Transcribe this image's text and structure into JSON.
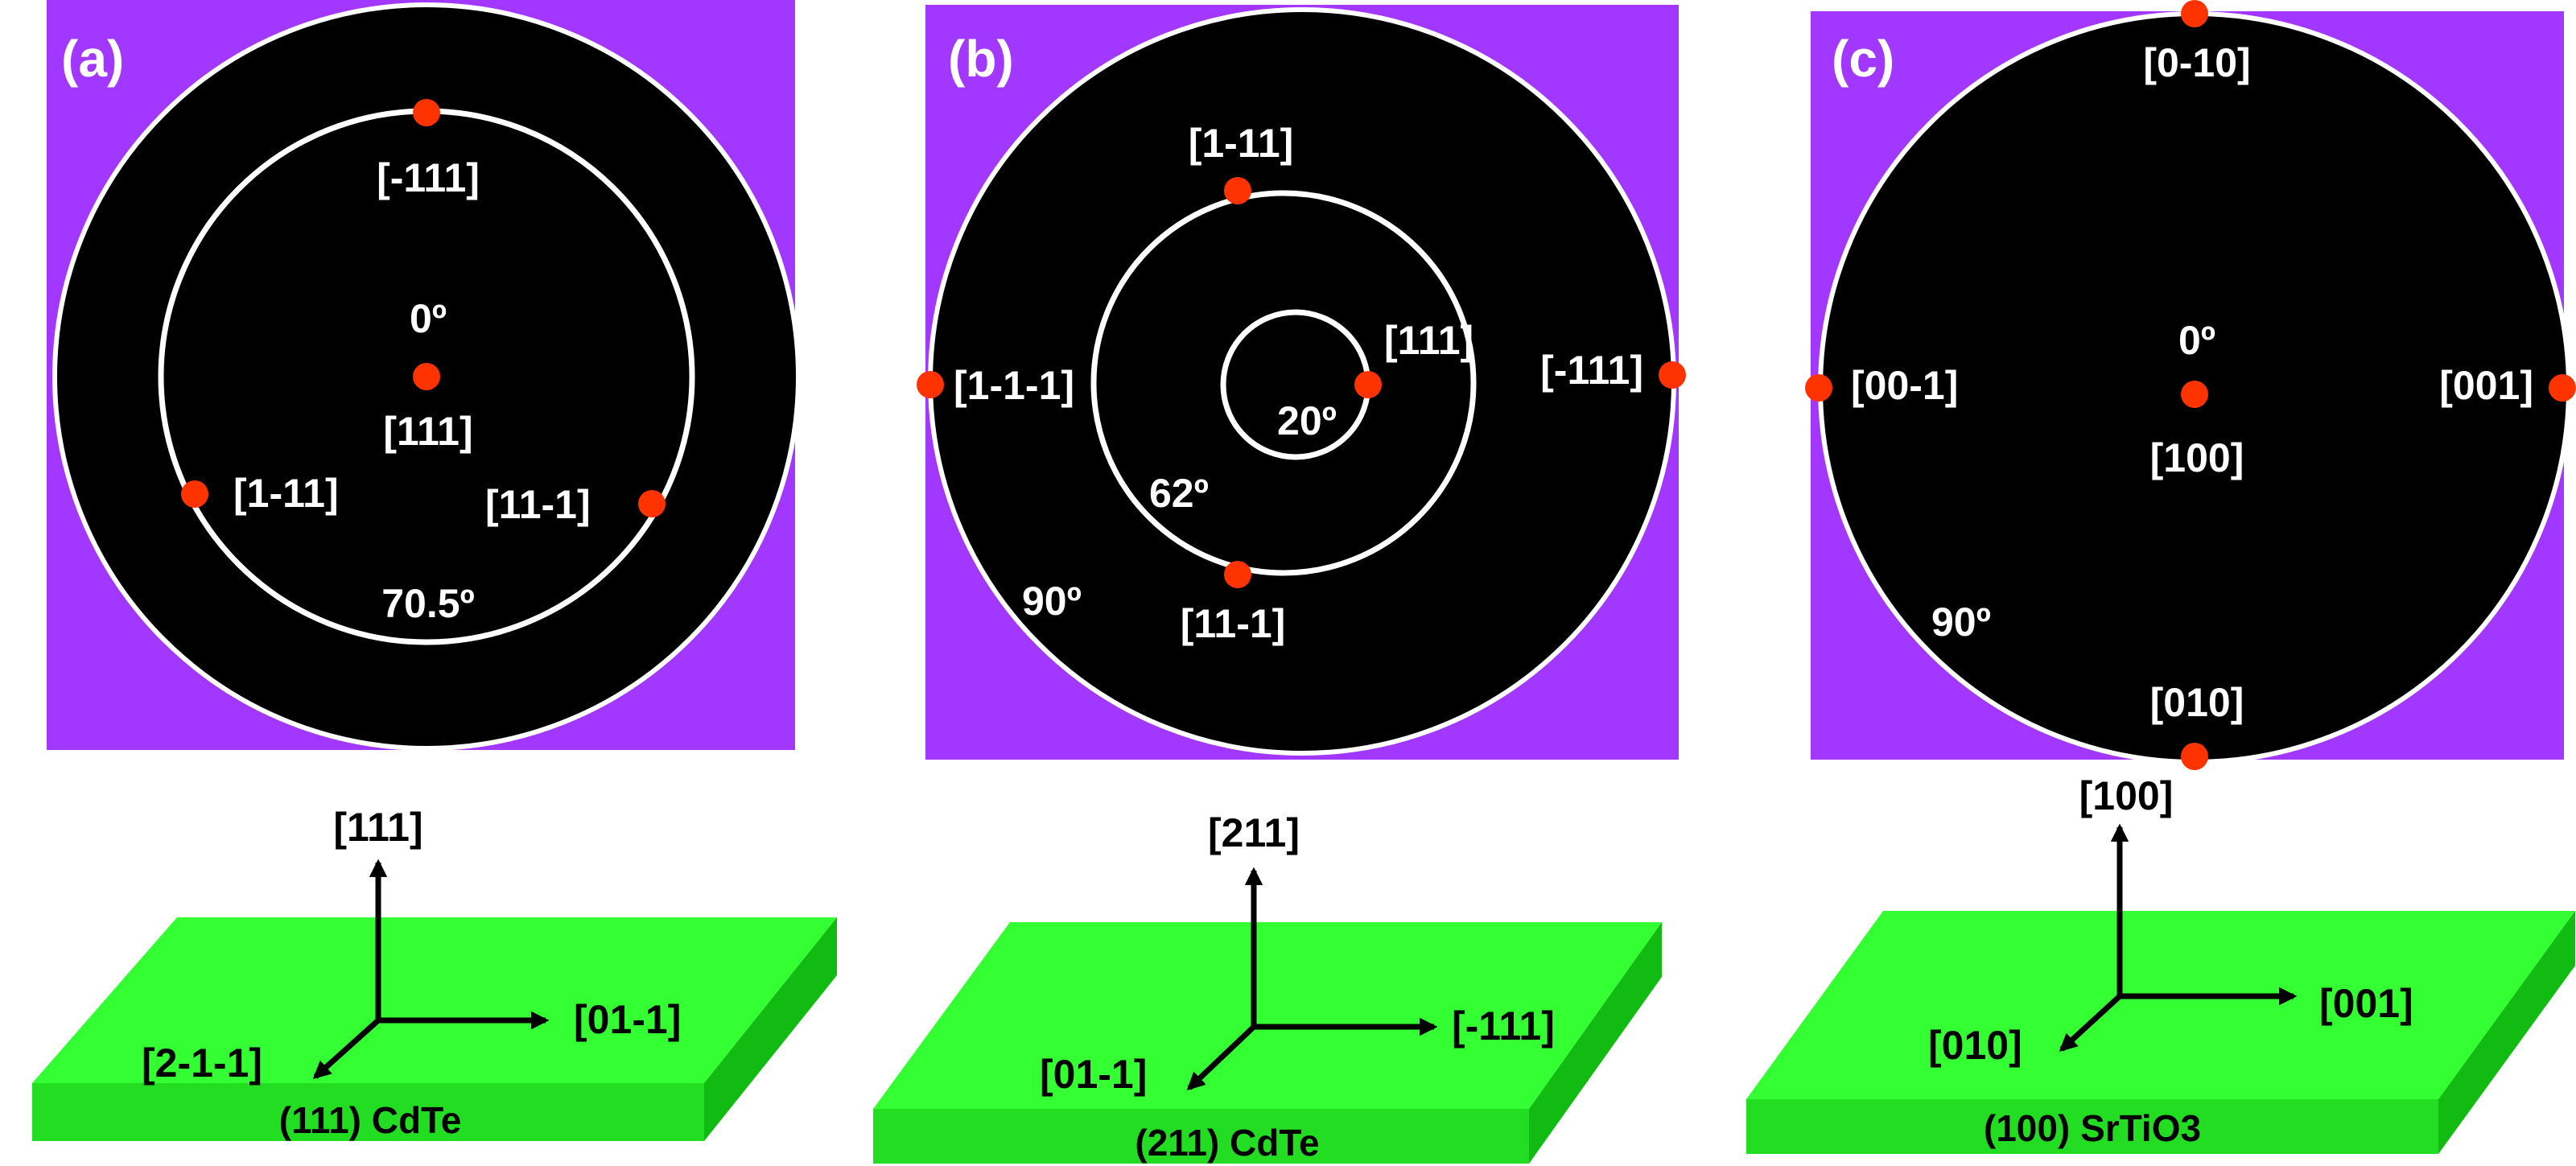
{
  "colors": {
    "background": "#a238ff",
    "disk": "#000000",
    "circle": "#ffffff",
    "pole": "#ff3300",
    "slab_top": "#33ff33",
    "slab_front": "#22dd22",
    "slab_side": "#11bb11",
    "arrow": "#000000"
  },
  "panels": [
    {
      "id": "a",
      "panel_label": "(a)",
      "angle_labels": [
        "0º",
        "70.5º"
      ],
      "poles": [
        "[-111]",
        "[111]",
        "[1-11]",
        "[11-1]"
      ],
      "axes": {
        "normal": "[111]",
        "right": "[01-1]",
        "front": "[2-1-1]"
      },
      "substrate": "(111) CdTe"
    },
    {
      "id": "b",
      "panel_label": "(b)",
      "angle_labels": [
        "20º",
        "62º",
        "90º"
      ],
      "poles": [
        "[1-11]",
        "[111]",
        "[1-1-1]",
        "[-111]",
        "[11-1]"
      ],
      "axes": {
        "normal": "[211]",
        "right": "[-111]",
        "front": "[01-1]"
      },
      "substrate": "(211) CdTe"
    },
    {
      "id": "c",
      "panel_label": "(c)",
      "angle_labels": [
        "0º",
        "90º"
      ],
      "poles": [
        "[0-10]",
        "[00-1]",
        "[001]",
        "[100]",
        "[010]"
      ],
      "axes": {
        "normal": "[100]",
        "right": "[001]",
        "front": "[010]"
      },
      "substrate": "(100) SrTiO3"
    }
  ]
}
